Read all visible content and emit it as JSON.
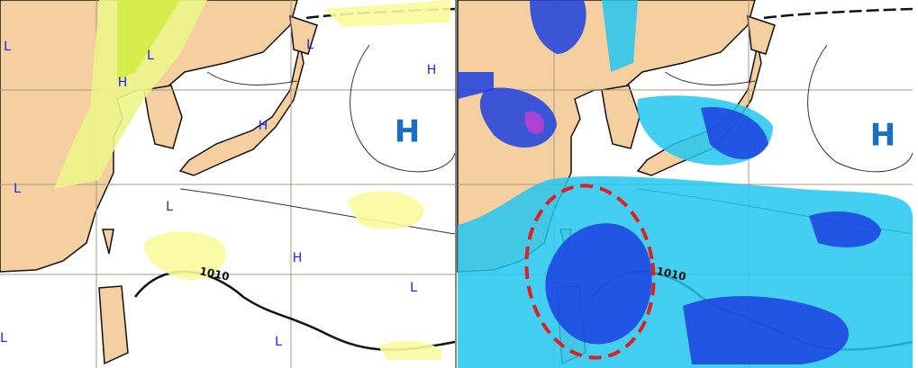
{
  "left_panel": {
    "labels": [
      "L",
      "L",
      "H",
      "L",
      "H",
      "L",
      "L",
      "H",
      "H",
      "L",
      "L",
      "L"
    ],
    "isobar_label": "1010",
    "high_label": "H"
  },
  "right_panel": {
    "isobar_label": "1010",
    "high_label": "H"
  }
}
